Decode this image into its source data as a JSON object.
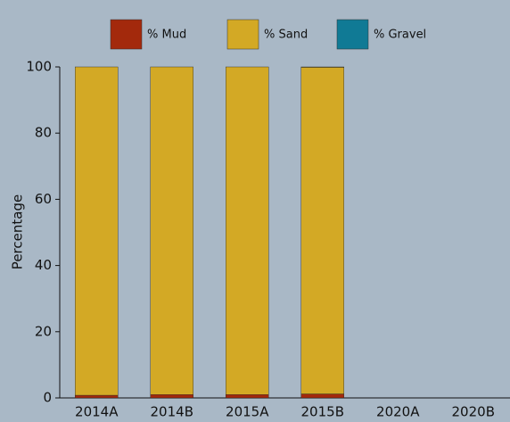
{
  "chart_data": {
    "type": "stacked_bar",
    "categories": [
      "2014A",
      "2014B",
      "2015A",
      "2015B",
      "2020A",
      "2020B"
    ],
    "series": [
      {
        "name": "% Mud",
        "color": "#a3290c",
        "values": [
          0.8,
          1.0,
          1.0,
          1.2,
          null,
          null
        ]
      },
      {
        "name": "% Sand",
        "color": "#d3a925",
        "values": [
          99.2,
          99.0,
          99.0,
          98.7,
          null,
          null
        ]
      },
      {
        "name": "% Gravel",
        "color": "#107a95",
        "values": [
          0,
          0,
          0,
          0.1,
          null,
          null
        ]
      }
    ],
    "y_label": "Percentage",
    "ylim": [
      0,
      100
    ],
    "yticks": [
      0,
      20,
      40,
      60,
      80,
      100
    ]
  }
}
